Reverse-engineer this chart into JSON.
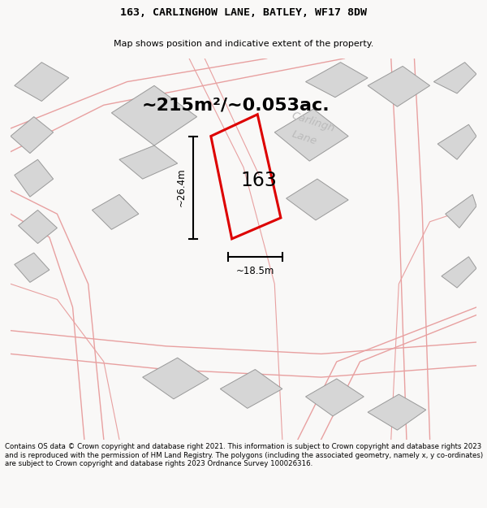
{
  "title": "163, CARLINGHOW LANE, BATLEY, WF17 8DW",
  "subtitle": "Map shows position and indicative extent of the property.",
  "area_text": "~215m²/~0.053ac.",
  "street_label1": "Carlingh",
  "street_label2": "Lane",
  "property_number": "163",
  "dim_width": "~18.5m",
  "dim_height": "~26.4m",
  "footer": "Contains OS data © Crown copyright and database right 2021. This information is subject to Crown copyright and database rights 2023 and is reproduced with the permission of HM Land Registry. The polygons (including the associated geometry, namely x, y co-ordinates) are subject to Crown copyright and database rights 2023 Ordnance Survey 100026316.",
  "bg_color": "#f9f8f7",
  "map_bg": "#ffffff",
  "property_color": "#dd0000",
  "building_fill": "#d6d6d6",
  "building_edge": "#999999",
  "road_line_color": "#e8a0a0",
  "dim_line_color": "#111111",
  "title_fontsize": 9.5,
  "subtitle_fontsize": 8.0,
  "area_fontsize": 16,
  "street_fontsize": 10,
  "number_fontsize": 17,
  "footer_fontsize": 6.2
}
